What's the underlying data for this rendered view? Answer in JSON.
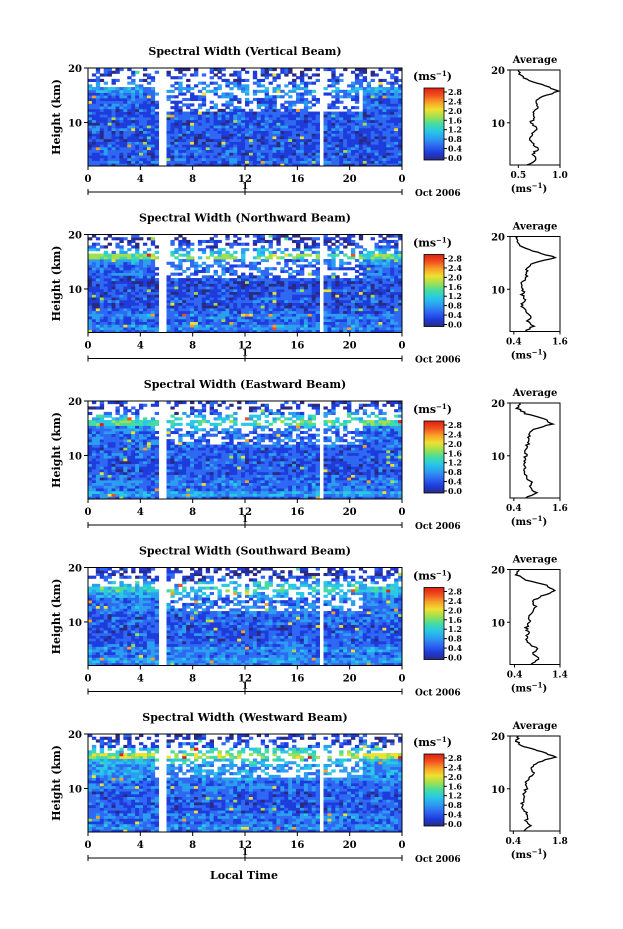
{
  "figure": {
    "xlabel": "Local Time",
    "date_label": "Oct 2006",
    "day_marker": "1",
    "colorbar_unit": "(ms",
    "unit_exp": "−1",
    "avg_title": "Average",
    "avg_unit": "(ms",
    "colorbar_ticks": [
      "2.8",
      "2.4",
      "2.0",
      "1.6",
      "1.2",
      "0.8",
      "0.4",
      "0.0"
    ],
    "colormap": [
      "#2a2a80",
      "#1e3cdc",
      "#2f68f2",
      "#2c9ef0",
      "#28c8e6",
      "#46dca0",
      "#a0e050",
      "#f0e030",
      "#f8a028",
      "#f05020",
      "#e02010"
    ]
  },
  "chart_data": [
    {
      "type": "heatmap",
      "title": "Spectral Width (Vertical Beam)",
      "xlabel": "Local Time",
      "ylabel": "Height (km)",
      "xlim": [
        0,
        24
      ],
      "ylim": [
        2,
        20
      ],
      "xticks": [
        "0",
        "4",
        "8",
        "12",
        "16",
        "20",
        "0"
      ],
      "yticks": [
        "20",
        "10"
      ],
      "colorbar": {
        "label": "(ms⁻¹)",
        "range": [
          0.0,
          2.8
        ]
      },
      "average": {
        "title": "Average",
        "xlabel": "(ms⁻¹)",
        "xticks": [
          "0.5",
          "1.0"
        ],
        "xlim": [
          0.4,
          1.0
        ],
        "heights": [
          2,
          3,
          4,
          5,
          6,
          7,
          8,
          9,
          10,
          11,
          12,
          13,
          14,
          15,
          16,
          17,
          18,
          19,
          20
        ],
        "values": [
          0.6,
          0.72,
          0.66,
          0.74,
          0.68,
          0.62,
          0.67,
          0.72,
          0.64,
          0.7,
          0.66,
          0.74,
          0.7,
          0.8,
          0.98,
          0.82,
          0.62,
          0.52,
          0.5
        ]
      }
    },
    {
      "type": "heatmap",
      "title": "Spectral Width (Northward Beam)",
      "xlabel": "Local Time",
      "ylabel": "Height (km)",
      "xlim": [
        0,
        24
      ],
      "ylim": [
        2,
        20
      ],
      "xticks": [
        "0",
        "4",
        "8",
        "12",
        "16",
        "20",
        "0"
      ],
      "yticks": [
        "20",
        "10"
      ],
      "colorbar": {
        "label": "(ms⁻¹)",
        "range": [
          0.0,
          2.8
        ]
      },
      "average": {
        "title": "Average",
        "xlabel": "(ms⁻¹)",
        "xticks": [
          "0.4",
          "1.6"
        ],
        "xlim": [
          0.3,
          1.6
        ],
        "heights": [
          2,
          3,
          4,
          5,
          6,
          7,
          8,
          9,
          10,
          11,
          12,
          13,
          14,
          15,
          16,
          17,
          18,
          19,
          20
        ],
        "values": [
          0.7,
          0.9,
          0.75,
          0.85,
          0.7,
          0.6,
          0.68,
          0.62,
          0.66,
          0.6,
          0.7,
          0.75,
          0.72,
          0.9,
          1.5,
          1.0,
          0.6,
          0.45,
          0.5
        ]
      }
    },
    {
      "type": "heatmap",
      "title": "Spectral Width (Eastward Beam)",
      "xlabel": "Local Time",
      "ylabel": "Height (km)",
      "xlim": [
        0,
        24
      ],
      "ylim": [
        2,
        20
      ],
      "xticks": [
        "0",
        "4",
        "8",
        "12",
        "16",
        "20",
        "0"
      ],
      "yticks": [
        "20",
        "10"
      ],
      "colorbar": {
        "label": "(ms⁻¹)",
        "range": [
          0.0,
          2.8
        ]
      },
      "average": {
        "title": "Average",
        "xlabel": "(ms⁻¹)",
        "xticks": [
          "0.4",
          "1.6"
        ],
        "xlim": [
          0.3,
          1.6
        ],
        "heights": [
          2,
          3,
          4,
          5,
          6,
          7,
          8,
          9,
          10,
          11,
          12,
          13,
          14,
          15,
          16,
          17,
          18,
          19,
          20
        ],
        "values": [
          0.7,
          1.0,
          0.8,
          0.85,
          0.72,
          0.65,
          0.7,
          0.66,
          0.72,
          0.68,
          0.75,
          0.82,
          0.78,
          0.9,
          1.4,
          1.2,
          0.7,
          0.5,
          0.55
        ]
      }
    },
    {
      "type": "heatmap",
      "title": "Spectral Width (Southward Beam)",
      "xlabel": "Local Time",
      "ylabel": "Height (km)",
      "xlim": [
        0,
        24
      ],
      "ylim": [
        2,
        20
      ],
      "xticks": [
        "0",
        "4",
        "8",
        "12",
        "16",
        "20",
        "0"
      ],
      "yticks": [
        "20",
        "10"
      ],
      "colorbar": {
        "label": "(ms⁻¹)",
        "range": [
          0.0,
          2.8
        ]
      },
      "average": {
        "title": "Average",
        "xlabel": "(ms⁻¹)",
        "xticks": [
          "0.4",
          "1.4"
        ],
        "xlim": [
          0.3,
          1.4
        ],
        "heights": [
          2,
          3,
          4,
          5,
          6,
          7,
          8,
          9,
          10,
          11,
          12,
          13,
          14,
          15,
          16,
          17,
          18,
          19,
          20
        ],
        "values": [
          0.75,
          0.95,
          0.8,
          0.9,
          0.72,
          0.66,
          0.7,
          0.66,
          0.74,
          0.7,
          0.8,
          0.85,
          0.8,
          1.0,
          1.3,
          1.1,
          0.65,
          0.45,
          0.5
        ]
      }
    },
    {
      "type": "heatmap",
      "title": "Spectral Width (Westward Beam)",
      "xlabel": "Local Time",
      "ylabel": "Height (km)",
      "xlim": [
        0,
        24
      ],
      "ylim": [
        2,
        20
      ],
      "xticks": [
        "0",
        "4",
        "8",
        "12",
        "16",
        "20",
        "0"
      ],
      "yticks": [
        "20",
        "10"
      ],
      "colorbar": {
        "label": "(ms⁻¹)",
        "range": [
          0.0,
          2.8
        ]
      },
      "average": {
        "title": "Average",
        "xlabel": "(ms⁻¹)",
        "xticks": [
          "0.4",
          "1.8"
        ],
        "xlim": [
          0.3,
          1.8
        ],
        "heights": [
          2,
          3,
          4,
          5,
          6,
          7,
          8,
          9,
          10,
          11,
          12,
          13,
          14,
          15,
          16,
          17,
          18,
          19,
          20
        ],
        "values": [
          0.7,
          0.9,
          0.78,
          0.84,
          0.7,
          0.66,
          0.72,
          0.68,
          0.8,
          0.76,
          0.9,
          1.0,
          0.95,
          1.1,
          1.65,
          1.3,
          0.7,
          0.5,
          0.55
        ]
      }
    }
  ]
}
